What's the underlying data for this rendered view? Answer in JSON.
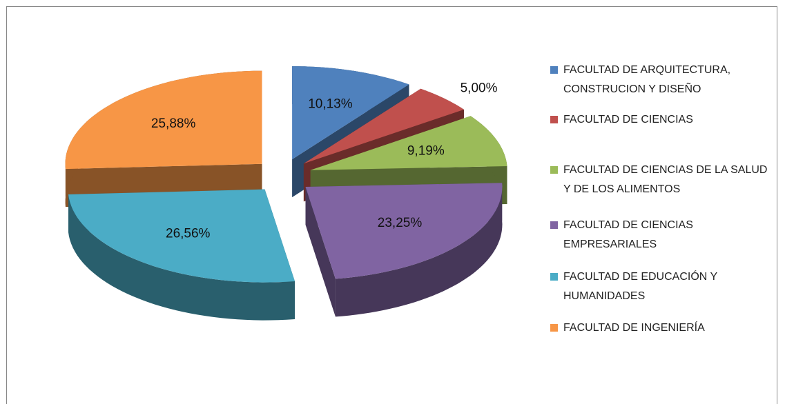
{
  "chart_data": {
    "type": "pie",
    "categories": [
      "FACULTAD DE ARQUITECTURA, CONSTRUCION Y DISEÑO",
      "FACULTAD DE CIENCIAS",
      "FACULTAD DE CIENCIAS DE LA SALUD Y DE LOS ALIMENTOS",
      "FACULTAD DE CIENCIAS EMPRESARIALES",
      "FACULTAD DE EDUCACIÓN Y HUMANIDADES",
      "FACULTAD DE INGENIERÍA"
    ],
    "values": [
      10.13,
      5.0,
      9.19,
      23.25,
      26.56,
      25.88
    ],
    "value_labels": [
      "10,13%",
      "5,00%",
      "9,19%",
      "23,25%",
      "26,56%",
      "25,88%"
    ],
    "colors": [
      "#4f81bd",
      "#c0504d",
      "#9bbb59",
      "#8064a2",
      "#4bacc6",
      "#f79646"
    ],
    "legend": "right"
  }
}
